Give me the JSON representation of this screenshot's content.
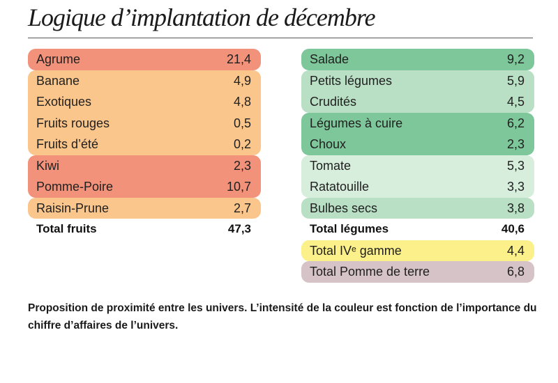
{
  "title": "Logique d’implantation de décembre",
  "caption": "Proposition de proximité entre les univers. L’intensité de la couleur est fonction de l’importance du chiffre d’affaires de l’univers.",
  "colors": {
    "strong_red": "#f2927a",
    "light_orange": "#fbc68c",
    "strong_green": "#7ec79a",
    "light_green": "#b9e0c5",
    "pale_green": "#d6eedb",
    "yellow": "#fbf08a",
    "mauve": "#d6c3c8"
  },
  "chart_data": {
    "type": "table",
    "fruits": {
      "groups": [
        {
          "color": "#f2927a",
          "items": [
            {
              "label": "Agrume",
              "value": "21,4"
            }
          ]
        },
        {
          "color": "#fbc68c",
          "items": [
            {
              "label": "Banane",
              "value": "4,9"
            },
            {
              "label": "Exotiques",
              "value": "4,8"
            },
            {
              "label": "Fruits rouges",
              "value": "0,5"
            },
            {
              "label": "Fruits d’été",
              "value": "0,2"
            }
          ]
        },
        {
          "color": "#f2927a",
          "items": [
            {
              "label": "Kiwi",
              "value": "2,3"
            },
            {
              "label": "Pomme-Poire",
              "value": "10,7"
            }
          ]
        },
        {
          "color": "#fbc68c",
          "items": [
            {
              "label": "Raisin-Prune",
              "value": "2,7"
            }
          ]
        }
      ],
      "total": {
        "label": "Total fruits",
        "value": "47,3"
      }
    },
    "legumes": {
      "groups": [
        {
          "color": "#7ec79a",
          "items": [
            {
              "label": "Salade",
              "value": "9,2"
            }
          ]
        },
        {
          "color": "#b9e0c5",
          "items": [
            {
              "label": "Petits légumes",
              "value": "5,9"
            },
            {
              "label": "Crudités",
              "value": "4,5"
            }
          ]
        },
        {
          "color": "#7ec79a",
          "items": [
            {
              "label": "Légumes à cuire",
              "value": "6,2"
            },
            {
              "label": "Choux",
              "value": "2,3"
            }
          ]
        },
        {
          "color": "#d6eedb",
          "items": [
            {
              "label": "Tomate",
              "value": "5,3"
            },
            {
              "label": "Ratatouille",
              "value": "3,3"
            }
          ]
        },
        {
          "color": "#b9e0c5",
          "items": [
            {
              "label": "Bulbes secs",
              "value": "3,8"
            }
          ]
        }
      ],
      "total": {
        "label": "Total légumes",
        "value": "40,6"
      },
      "extras": [
        {
          "color": "#fbf08a",
          "label": "Total IVᵉ gamme",
          "value": "4,4"
        },
        {
          "color": "#d6c3c8",
          "label": "Total Pomme de terre",
          "value": "6,8"
        }
      ]
    }
  }
}
